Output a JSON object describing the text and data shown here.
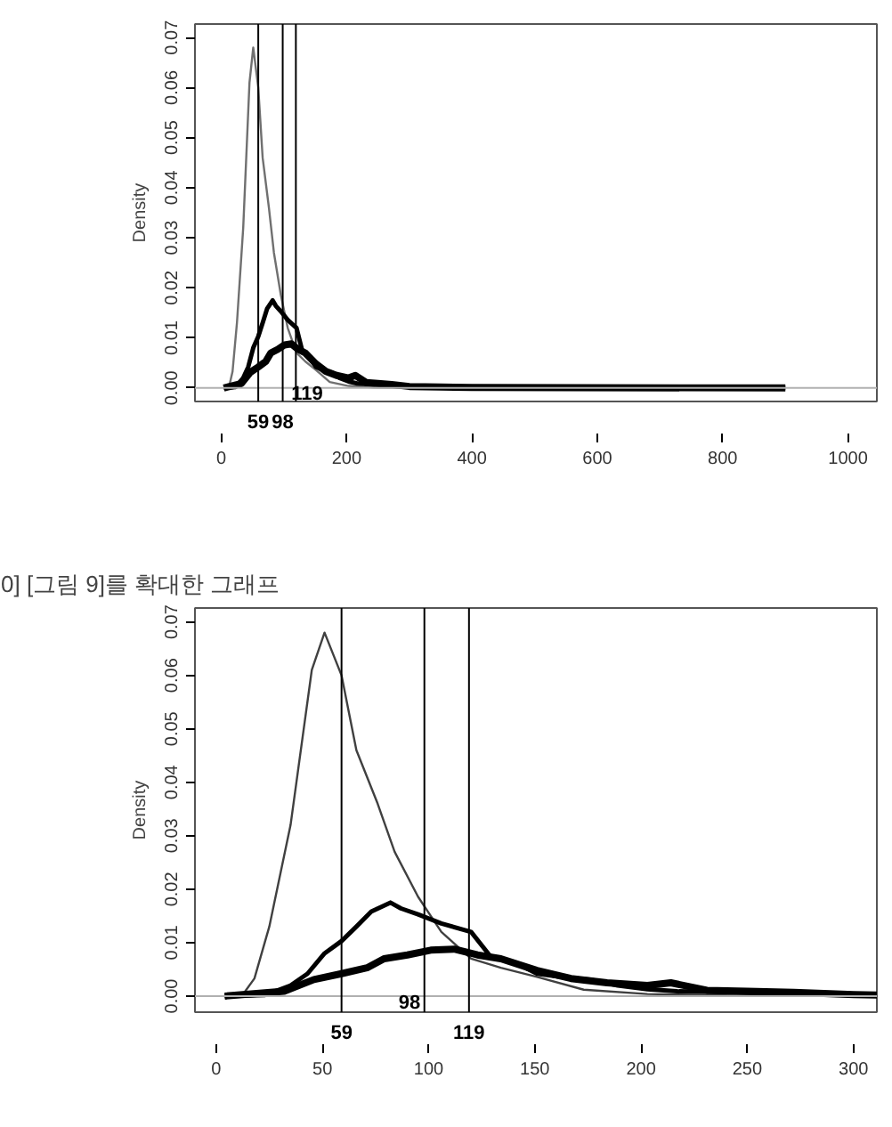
{
  "chart_data": [
    {
      "type": "line",
      "ylabel": "Density",
      "xlim": [
        -42,
        1046
      ],
      "ylim": [
        -0.0027,
        0.0727
      ],
      "xticks": [
        0,
        200,
        400,
        600,
        800,
        1000
      ],
      "yticks": [
        {
          "value": 0,
          "label": "0.00"
        },
        {
          "value": 0.01,
          "label": "0.01"
        },
        {
          "value": 0.02,
          "label": "0.02"
        },
        {
          "value": 0.03,
          "label": "0.03"
        },
        {
          "value": 0.04,
          "label": "0.04"
        },
        {
          "value": 0.05,
          "label": "0.05"
        },
        {
          "value": 0.06,
          "label": "0.06"
        },
        {
          "value": 0.07,
          "label": "0.07"
        }
      ],
      "grid": false,
      "series": [
        {
          "color": "#707070",
          "x": [
            4,
            12,
            18,
            25,
            35,
            45,
            51,
            59,
            66,
            76,
            84,
            95,
            106,
            120,
            134,
            151,
            173,
            203,
            245,
            310,
            400,
            900
          ],
          "values": [
            0,
            0,
            0.0033,
            0.013,
            0.032,
            0.061,
            0.068,
            0.06,
            0.046,
            0.036,
            0.027,
            0.0186,
            0.012,
            0.007,
            0.0053,
            0.0036,
            0.0012,
            0.0004,
            0.0001,
            0,
            0,
            0
          ]
        },
        {
          "color": "#000000",
          "x": [
            4,
            23,
            35,
            43,
            51,
            59,
            66,
            73,
            82,
            87,
            95,
            106,
            120,
            129,
            140,
            151,
            162,
            176,
            189,
            203,
            217,
            245,
            272,
            310,
            400,
            900
          ],
          "values": [
            0,
            0.0002,
            0.002,
            0.0042,
            0.008,
            0.0103,
            0.013,
            0.0158,
            0.0175,
            0.0164,
            0.0153,
            0.0136,
            0.012,
            0.0075,
            0.0064,
            0.0042,
            0.0036,
            0.0031,
            0.002,
            0.0013,
            0.0009,
            0.0007,
            0.0004,
            0.0002,
            0,
            0
          ]
        },
        {
          "color": "#000000",
          "x": [
            4,
            32,
            46,
            59,
            71,
            79,
            90,
            101,
            112,
            123,
            134,
            151,
            167,
            184,
            203,
            214,
            231,
            250,
            272,
            300,
            350,
            400,
            900
          ],
          "values": [
            0,
            0.0009,
            0.0031,
            0.0042,
            0.0053,
            0.007,
            0.0077,
            0.0086,
            0.0088,
            0.0077,
            0.007,
            0.0048,
            0.0033,
            0.0025,
            0.002,
            0.0025,
            0.0011,
            0.0009,
            0.0007,
            0.0003,
            0.0002,
            0.0001,
            0
          ]
        }
      ],
      "ref_lines": [
        {
          "axis": "y",
          "value": 0,
          "color": "#b0b0b0"
        },
        {
          "axis": "x",
          "value": 59,
          "color": "#000000"
        },
        {
          "axis": "x",
          "value": 98,
          "color": "#000000"
        },
        {
          "axis": "x",
          "value": 119,
          "color": "#000000"
        }
      ],
      "annotations": [
        {
          "text": "59",
          "x": 59,
          "y": -0.0027
        },
        {
          "text": "98",
          "x": 98,
          "y": -0.0027
        },
        {
          "text": "119",
          "x": 137,
          "y": -0.001
        }
      ]
    },
    {
      "type": "line",
      "title": "0] [그림 9]를 확대한 그래프",
      "ylabel": "Density",
      "xlim": [
        -10,
        311
      ],
      "ylim": [
        -0.003,
        0.0726
      ],
      "xticks": [
        0,
        50,
        100,
        150,
        200,
        250,
        300
      ],
      "yticks": [
        {
          "value": 0,
          "label": "0.00"
        },
        {
          "value": 0.01,
          "label": "0.01"
        },
        {
          "value": 0.02,
          "label": "0.02"
        },
        {
          "value": 0.03,
          "label": "0.03"
        },
        {
          "value": 0.04,
          "label": "0.04"
        },
        {
          "value": 0.05,
          "label": "0.05"
        },
        {
          "value": 0.06,
          "label": "0.06"
        },
        {
          "value": 0.07,
          "label": "0.07"
        }
      ],
      "grid": false,
      "series": [
        {
          "color": "#404040",
          "x": [
            4,
            12,
            18,
            25,
            35,
            45,
            51,
            59,
            66,
            76,
            84,
            95,
            106,
            120,
            134,
            151,
            173,
            203,
            245,
            311
          ],
          "values": [
            0,
            0,
            0.0033,
            0.013,
            0.032,
            0.061,
            0.068,
            0.06,
            0.046,
            0.036,
            0.027,
            0.0186,
            0.012,
            0.007,
            0.0053,
            0.0036,
            0.0012,
            0.0004,
            0.0001,
            0
          ]
        },
        {
          "color": "#000000",
          "x": [
            4,
            23,
            35,
            43,
            51,
            59,
            66,
            73,
            82,
            87,
            95,
            106,
            120,
            129,
            140,
            151,
            162,
            176,
            189,
            203,
            217,
            245,
            272,
            311
          ],
          "values": [
            0,
            0.0002,
            0.002,
            0.0042,
            0.008,
            0.0103,
            0.013,
            0.0158,
            0.0175,
            0.0164,
            0.0153,
            0.0136,
            0.012,
            0.0075,
            0.0064,
            0.0042,
            0.0036,
            0.0031,
            0.002,
            0.0013,
            0.0009,
            0.0007,
            0.0004,
            0.0002
          ]
        },
        {
          "color": "#000000",
          "x": [
            4,
            32,
            46,
            59,
            71,
            79,
            90,
            101,
            112,
            123,
            134,
            151,
            167,
            184,
            203,
            214,
            231,
            250,
            272,
            300,
            311
          ],
          "values": [
            0,
            0.0009,
            0.0031,
            0.0042,
            0.0053,
            0.007,
            0.0077,
            0.0086,
            0.0088,
            0.0077,
            0.007,
            0.0048,
            0.0033,
            0.0025,
            0.002,
            0.0025,
            0.0011,
            0.0009,
            0.0007,
            0.0003,
            0.0002
          ]
        }
      ],
      "ref_lines": [
        {
          "axis": "y",
          "value": 0,
          "color": "#b0b0b0"
        },
        {
          "axis": "x",
          "value": 59,
          "color": "#000000"
        },
        {
          "axis": "x",
          "value": 98,
          "color": "#000000"
        },
        {
          "axis": "x",
          "value": 119,
          "color": "#000000"
        }
      ],
      "annotations": [
        {
          "text": "59",
          "x": 59,
          "y": -0.003
        },
        {
          "text": "98",
          "x": 91,
          "y": -0.001
        },
        {
          "text": "119",
          "x": 119,
          "y": -0.003
        }
      ]
    }
  ]
}
